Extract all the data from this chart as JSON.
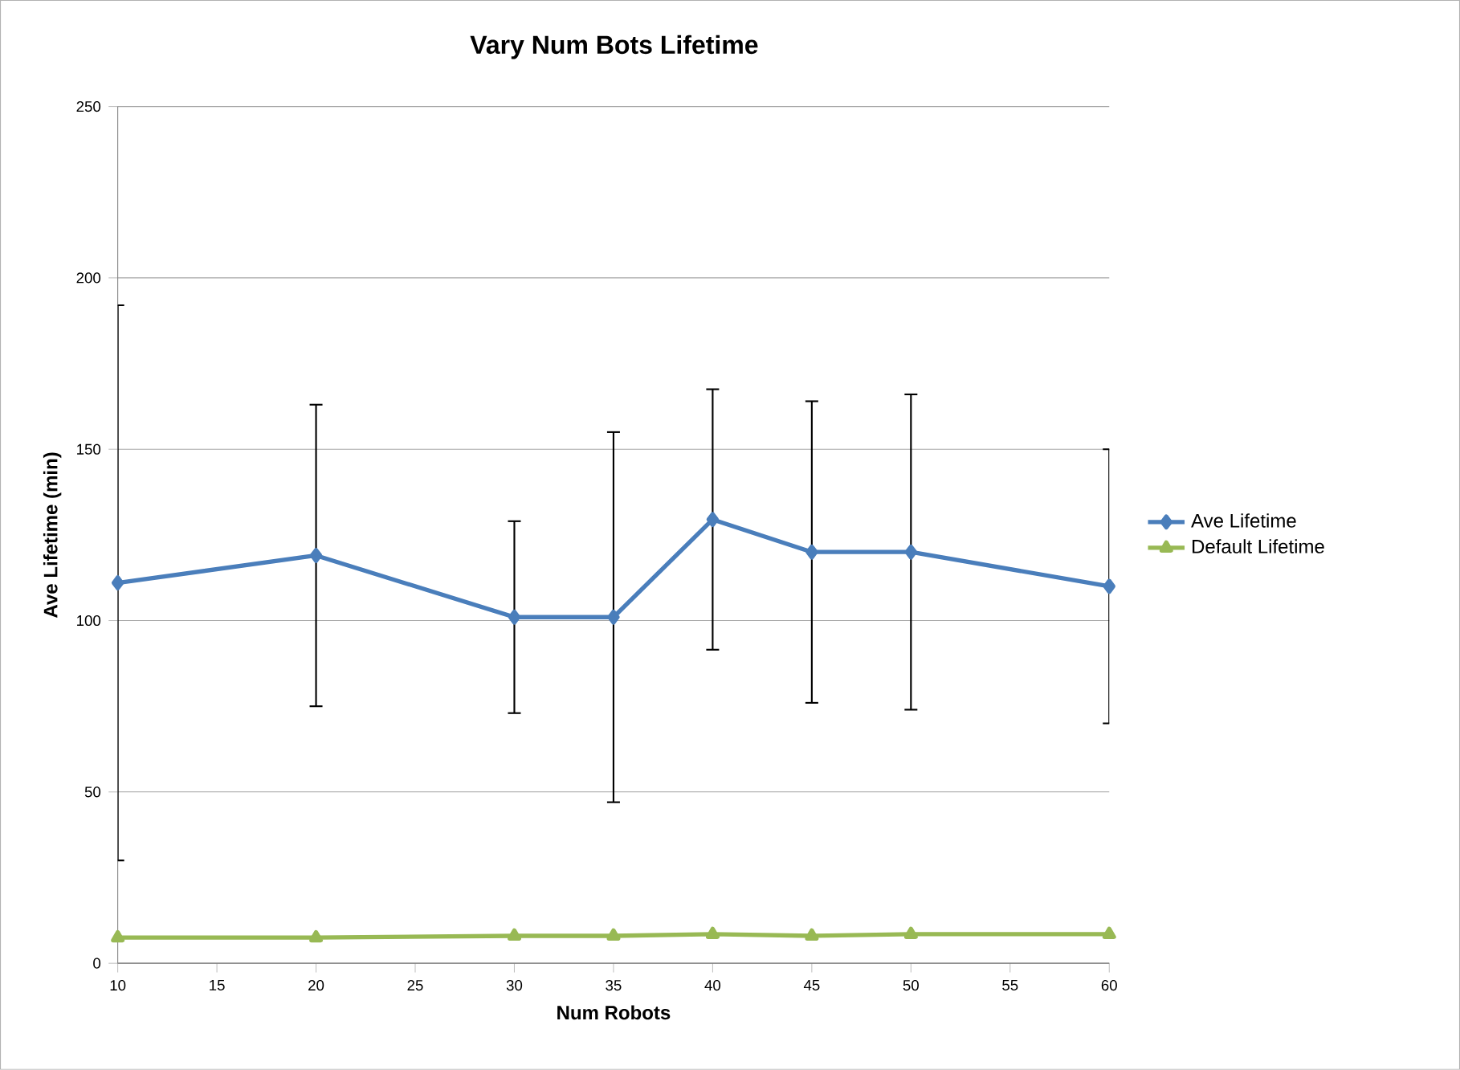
{
  "chart_data": {
    "type": "line",
    "title": "Vary Num Bots Lifetime",
    "xlabel": "Num Robots",
    "ylabel": "Ave Lifetime (min)",
    "x": [
      10,
      20,
      30,
      35,
      40,
      45,
      50,
      60
    ],
    "series": [
      {
        "name": "Ave Lifetime",
        "color": "#4a7ebb",
        "marker": "diamond",
        "values": [
          111,
          119,
          101,
          101,
          129.5,
          120,
          120,
          110
        ],
        "errors": [
          81,
          44,
          28,
          54,
          38,
          44,
          46,
          40
        ]
      },
      {
        "name": "Default Lifetime",
        "color": "#98b954",
        "marker": "triangle",
        "values": [
          7.5,
          7.5,
          8,
          8,
          8.5,
          8,
          8.5,
          8.5
        ]
      }
    ],
    "xlim": [
      10,
      60
    ],
    "xticks": [
      10,
      15,
      20,
      25,
      30,
      35,
      40,
      45,
      50,
      55,
      60
    ],
    "ylim": [
      0,
      250
    ],
    "yticks": [
      0,
      50,
      100,
      150,
      200,
      250
    ],
    "grid": "y",
    "legend": "right",
    "line_style": "solid"
  }
}
